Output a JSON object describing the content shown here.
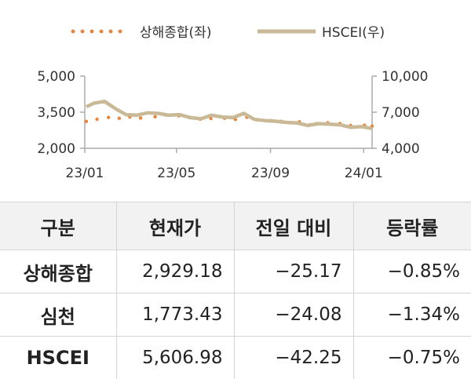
{
  "chart_data": {
    "type": "line",
    "legend": [
      {
        "name": "상해종합(좌)",
        "style": "dotted",
        "color": "#e8833a"
      },
      {
        "name": "HSCEI(우)",
        "style": "solid",
        "color": "#c9b996"
      }
    ],
    "legend_position": "top-center",
    "x_ticks": [
      "23/01",
      "23/05",
      "23/09",
      "24/01"
    ],
    "x_range": [
      "2023-01-01",
      "2024-01-12"
    ],
    "y_left": {
      "ticks": [
        "5,000",
        "3,500",
        "2,000"
      ],
      "range": [
        2000,
        5000
      ]
    },
    "y_right": {
      "ticks": [
        "10,000",
        "7,000",
        "4,000"
      ],
      "range": [
        4000,
        10000
      ]
    },
    "grid": false,
    "series": [
      {
        "name": "상해종합(좌)",
        "axis": "left",
        "color": "#e8833a",
        "x": [
          "2023-01-03",
          "2023-01-17",
          "2023-02-01",
          "2023-02-15",
          "2023-03-01",
          "2023-03-15",
          "2023-04-03",
          "2023-04-17",
          "2023-05-04",
          "2023-05-17",
          "2023-06-01",
          "2023-06-15",
          "2023-07-03",
          "2023-07-17",
          "2023-08-01",
          "2023-08-15",
          "2023-09-01",
          "2023-09-15",
          "2023-10-09",
          "2023-10-23",
          "2023-11-01",
          "2023-11-15",
          "2023-12-01",
          "2023-12-15",
          "2024-01-02",
          "2024-01-12"
        ],
        "y": [
          3120,
          3210,
          3280,
          3250,
          3300,
          3260,
          3310,
          3380,
          3350,
          3300,
          3210,
          3240,
          3250,
          3200,
          3290,
          3180,
          3150,
          3120,
          3100,
          2980,
          3030,
          3060,
          3030,
          2950,
          2960,
          2920
        ]
      },
      {
        "name": "HSCEI(우)",
        "axis": "right",
        "color": "#c9b996",
        "x": [
          "2023-01-03",
          "2023-01-13",
          "2023-01-27",
          "2023-02-10",
          "2023-02-24",
          "2023-03-10",
          "2023-03-24",
          "2023-04-07",
          "2023-04-21",
          "2023-05-05",
          "2023-05-19",
          "2023-06-02",
          "2023-06-16",
          "2023-06-30",
          "2023-07-14",
          "2023-07-28",
          "2023-08-11",
          "2023-08-25",
          "2023-09-08",
          "2023-09-22",
          "2023-10-06",
          "2023-10-20",
          "2023-11-03",
          "2023-11-17",
          "2023-12-01",
          "2023-12-15",
          "2023-12-29",
          "2024-01-12"
        ],
        "y": [
          7450,
          7750,
          7900,
          7300,
          6800,
          6750,
          6950,
          6900,
          6750,
          6800,
          6550,
          6450,
          6750,
          6600,
          6550,
          6900,
          6400,
          6300,
          6250,
          6150,
          6100,
          5900,
          6050,
          6000,
          5950,
          5750,
          5800,
          5650
        ]
      }
    ]
  },
  "table": {
    "headers": [
      "구분",
      "현재가",
      "전일 대비",
      "등락률"
    ],
    "rows": [
      {
        "name": "상해종합",
        "price": "2,929.18",
        "change": "−25.17",
        "rate": "−0.85%"
      },
      {
        "name": "심천",
        "price": "1,773.43",
        "change": "−24.08",
        "rate": "−1.34%"
      },
      {
        "name": "HSCEI",
        "price": "5,606.98",
        "change": "−42.25",
        "rate": "−0.75%"
      }
    ]
  }
}
